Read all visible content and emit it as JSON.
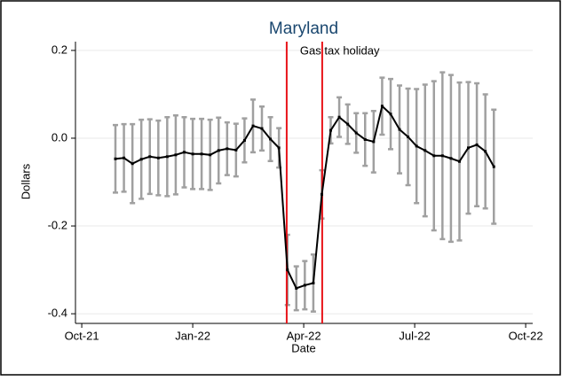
{
  "chart_data": {
    "type": "line",
    "title": "Maryland",
    "xlabel": "Date",
    "ylabel": "Dollars",
    "annotation": "Gas tax holiday",
    "vlines": [
      5.54,
      6.5
    ],
    "vline_color": "#e8141a",
    "x": [
      0.91,
      1.14,
      1.37,
      1.61,
      1.84,
      2.07,
      2.31,
      2.54,
      2.77,
      3.0,
      3.24,
      3.47,
      3.7,
      3.93,
      4.17,
      4.4,
      4.63,
      4.87,
      5.1,
      5.33,
      5.56,
      5.8,
      6.03,
      6.26,
      6.49,
      6.73,
      6.96,
      7.19,
      7.42,
      7.66,
      7.89,
      8.12,
      8.35,
      8.59,
      8.82,
      9.05,
      9.28,
      9.52,
      9.75,
      9.98,
      10.21,
      10.45,
      10.68,
      10.91,
      11.14
    ],
    "values": [
      -0.047,
      -0.045,
      -0.058,
      -0.048,
      -0.042,
      -0.045,
      -0.042,
      -0.038,
      -0.032,
      -0.036,
      -0.036,
      -0.038,
      -0.028,
      -0.024,
      -0.027,
      -0.005,
      0.028,
      0.022,
      -0.002,
      -0.022,
      -0.3,
      -0.342,
      -0.335,
      -0.33,
      -0.128,
      0.018,
      0.048,
      0.032,
      0.012,
      -0.003,
      -0.008,
      0.073,
      0.055,
      0.02,
      0.003,
      -0.018,
      -0.028,
      -0.04,
      -0.04,
      -0.046,
      -0.053,
      -0.022,
      -0.015,
      -0.03,
      -0.065
    ],
    "errors": [
      0.077,
      0.077,
      0.09,
      0.09,
      0.085,
      0.085,
      0.09,
      0.09,
      0.08,
      0.08,
      0.08,
      0.08,
      0.075,
      0.06,
      0.06,
      0.05,
      0.06,
      0.05,
      0.05,
      0.045,
      0.08,
      0.05,
      0.055,
      0.065,
      0.055,
      0.03,
      0.045,
      0.045,
      0.045,
      0.06,
      0.07,
      0.065,
      0.08,
      0.1,
      0.11,
      0.13,
      0.15,
      0.17,
      0.19,
      0.19,
      0.18,
      0.15,
      0.14,
      0.13,
      0.13
    ],
    "color": "#000000",
    "error_color": "#a0a0a0",
    "xlim": [
      -0.17,
      12.19
    ],
    "xticks": [
      {
        "value": 0,
        "label": "Oct-21"
      },
      {
        "value": 3,
        "label": "Jan-22"
      },
      {
        "value": 6,
        "label": "Apr-22"
      },
      {
        "value": 9,
        "label": "Jul-22"
      },
      {
        "value": 12,
        "label": "Oct-22"
      }
    ],
    "ylim": [
      -0.422,
      0.22
    ],
    "yticks": [
      -0.4,
      -0.2,
      {
        "value": 0,
        "label": "0.0"
      },
      0.2
    ],
    "grid": true
  }
}
